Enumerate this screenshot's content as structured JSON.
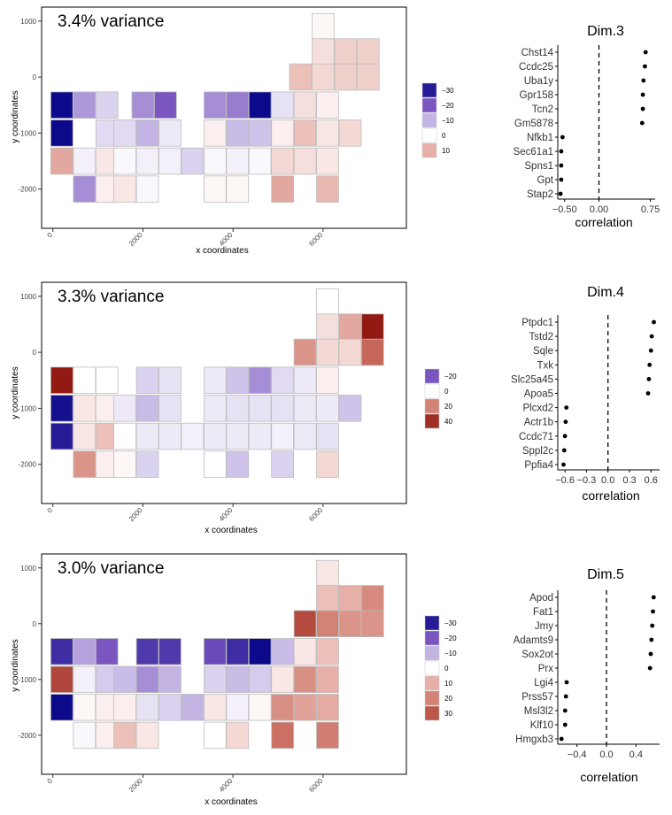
{
  "colors": {
    "neg_strong": "#0c0a8a",
    "neg_mid": "#7b56c0",
    "neg_light": "#c3b4e4",
    "zero": "#ffffff",
    "pos_light": "#e6b0a8",
    "pos_mid": "#c96b5d",
    "pos_strong": "#931a12",
    "cell_border": "#bdbdbd"
  },
  "chart_data": [
    {
      "type": "heatmap",
      "title": "3.4% variance",
      "xlabel": "x coordinates",
      "ylabel": "y coordinates",
      "xlim": [
        -250,
        7850
      ],
      "ylim": [
        -2700,
        1250
      ],
      "x_ticks": [
        0,
        2000,
        4000,
        6000
      ],
      "y_ticks": [
        1000,
        0,
        -1000,
        -2000
      ],
      "legend": {
        "position": "right",
        "values": [
          -30,
          -20,
          -10,
          0,
          10
        ],
        "labels": [
          "−30",
          "−20",
          "−10",
          "0",
          "10"
        ]
      },
      "cells": [
        {
          "x": 6000,
          "y": 900,
          "value": 1
        },
        {
          "x": 6000,
          "y": 450,
          "value": 4
        },
        {
          "x": 6500,
          "y": 450,
          "value": 6
        },
        {
          "x": 7000,
          "y": 450,
          "value": 6
        },
        {
          "x": 5500,
          "y": 0,
          "value": 8
        },
        {
          "x": 6000,
          "y": 0,
          "value": 5
        },
        {
          "x": 6500,
          "y": 0,
          "value": 6
        },
        {
          "x": 7000,
          "y": 0,
          "value": 6
        },
        {
          "x": 200,
          "y": -500,
          "value": -33
        },
        {
          "x": 700,
          "y": -500,
          "value": -13
        },
        {
          "x": 1200,
          "y": -500,
          "value": -6
        },
        {
          "x": 2000,
          "y": -500,
          "value": -14
        },
        {
          "x": 2500,
          "y": -500,
          "value": -20
        },
        {
          "x": 3600,
          "y": -500,
          "value": -14
        },
        {
          "x": 4100,
          "y": -500,
          "value": -16
        },
        {
          "x": 4600,
          "y": -500,
          "value": -33
        },
        {
          "x": 5100,
          "y": -500,
          "value": -4
        },
        {
          "x": 5600,
          "y": -500,
          "value": 4
        },
        {
          "x": 6100,
          "y": -500,
          "value": 2
        },
        {
          "x": 200,
          "y": -1000,
          "value": -33
        },
        {
          "x": 1200,
          "y": -1000,
          "value": -5
        },
        {
          "x": 1600,
          "y": -1000,
          "value": -5
        },
        {
          "x": 2100,
          "y": -1000,
          "value": -10
        },
        {
          "x": 2600,
          "y": -1000,
          "value": -3
        },
        {
          "x": 3600,
          "y": -1000,
          "value": 2
        },
        {
          "x": 4100,
          "y": -1000,
          "value": -9
        },
        {
          "x": 4600,
          "y": -1000,
          "value": -8
        },
        {
          "x": 5100,
          "y": -1000,
          "value": 2
        },
        {
          "x": 5600,
          "y": -1000,
          "value": 8
        },
        {
          "x": 6100,
          "y": -1000,
          "value": 3
        },
        {
          "x": 6600,
          "y": -1000,
          "value": 5
        },
        {
          "x": 200,
          "y": -1500,
          "value": 12
        },
        {
          "x": 700,
          "y": -1500,
          "value": -2
        },
        {
          "x": 1200,
          "y": -1500,
          "value": 3
        },
        {
          "x": 1600,
          "y": -1500,
          "value": -1
        },
        {
          "x": 2100,
          "y": -1500,
          "value": -2
        },
        {
          "x": 2600,
          "y": -1500,
          "value": -2
        },
        {
          "x": 3100,
          "y": -1500,
          "value": -6
        },
        {
          "x": 3600,
          "y": -1500,
          "value": -1
        },
        {
          "x": 4100,
          "y": -1500,
          "value": -2
        },
        {
          "x": 4600,
          "y": -1500,
          "value": -1
        },
        {
          "x": 5100,
          "y": -1500,
          "value": 5
        },
        {
          "x": 5600,
          "y": -1500,
          "value": 4
        },
        {
          "x": 6100,
          "y": -1500,
          "value": 3
        },
        {
          "x": 700,
          "y": -2000,
          "value": -14
        },
        {
          "x": 1200,
          "y": -2000,
          "value": 2
        },
        {
          "x": 1600,
          "y": -2000,
          "value": 3
        },
        {
          "x": 2100,
          "y": -2000,
          "value": -1
        },
        {
          "x": 3600,
          "y": -2000,
          "value": 1
        },
        {
          "x": 4100,
          "y": -2000,
          "value": 1
        },
        {
          "x": 5100,
          "y": -2000,
          "value": 12
        },
        {
          "x": 6100,
          "y": -2000,
          "value": 9
        }
      ]
    },
    {
      "type": "scatter",
      "title": "Dim.3",
      "xlabel": "correlation",
      "ylabel": "",
      "xlim": [
        -0.6,
        0.82
      ],
      "x_ticks": [
        -0.5,
        0.0,
        0.75
      ],
      "x_tick_labels": [
        "−0.50",
        "0.00",
        "0.75"
      ],
      "categories": [
        "Chst14",
        "Ccdc25",
        "Uba1y",
        "Gpr158",
        "Tcn2",
        "Gm5878",
        "Nfkb1",
        "Sec61a1",
        "Spns1",
        "Gpt",
        "Stap2"
      ],
      "values": [
        0.68,
        0.67,
        0.65,
        0.64,
        0.64,
        0.63,
        -0.53,
        -0.55,
        -0.55,
        -0.55,
        -0.56
      ]
    },
    {
      "type": "heatmap",
      "title": "3.3% variance",
      "xlabel": "x coordinates",
      "ylabel": "y coordinates",
      "xlim": [
        -250,
        7850
      ],
      "ylim": [
        -2700,
        1250
      ],
      "x_ticks": [
        0,
        2000,
        4000,
        6000
      ],
      "y_ticks": [
        1000,
        0,
        -1000,
        -2000
      ],
      "legend": {
        "position": "right",
        "values": [
          -20,
          0,
          20,
          40
        ],
        "labels": [
          "−20",
          "0",
          "20",
          "40"
        ]
      },
      "cells": [
        {
          "x": 6100,
          "y": 900,
          "value": 0
        },
        {
          "x": 6100,
          "y": 450,
          "value": 4
        },
        {
          "x": 6600,
          "y": 450,
          "value": 12
        },
        {
          "x": 7100,
          "y": 450,
          "value": 50
        },
        {
          "x": 5600,
          "y": 0,
          "value": 16
        },
        {
          "x": 6100,
          "y": 0,
          "value": 5
        },
        {
          "x": 6600,
          "y": 0,
          "value": 5
        },
        {
          "x": 7100,
          "y": 0,
          "value": 26
        },
        {
          "x": 200,
          "y": -500,
          "value": 55
        },
        {
          "x": 700,
          "y": -500,
          "value": 0
        },
        {
          "x": 1200,
          "y": -500,
          "value": 0
        },
        {
          "x": 2100,
          "y": -500,
          "value": -6
        },
        {
          "x": 2600,
          "y": -500,
          "value": -4
        },
        {
          "x": 3600,
          "y": -500,
          "value": -3
        },
        {
          "x": 4100,
          "y": -500,
          "value": -8
        },
        {
          "x": 4600,
          "y": -500,
          "value": -14
        },
        {
          "x": 5100,
          "y": -500,
          "value": -5
        },
        {
          "x": 5600,
          "y": -500,
          "value": -3
        },
        {
          "x": 6100,
          "y": -500,
          "value": 2
        },
        {
          "x": 200,
          "y": -1000,
          "value": -32
        },
        {
          "x": 700,
          "y": -1000,
          "value": 3
        },
        {
          "x": 1200,
          "y": -1000,
          "value": 2
        },
        {
          "x": 1600,
          "y": -1000,
          "value": -3
        },
        {
          "x": 2100,
          "y": -1000,
          "value": -9
        },
        {
          "x": 2600,
          "y": -1000,
          "value": -4
        },
        {
          "x": 3600,
          "y": -1000,
          "value": -3
        },
        {
          "x": 4100,
          "y": -1000,
          "value": -4
        },
        {
          "x": 4600,
          "y": -1000,
          "value": -4
        },
        {
          "x": 5100,
          "y": -1000,
          "value": -4
        },
        {
          "x": 5600,
          "y": -1000,
          "value": -3
        },
        {
          "x": 6100,
          "y": -1000,
          "value": -3
        },
        {
          "x": 6600,
          "y": -1000,
          "value": -8
        },
        {
          "x": 200,
          "y": -1500,
          "value": -30
        },
        {
          "x": 700,
          "y": -1500,
          "value": 3
        },
        {
          "x": 1200,
          "y": -1500,
          "value": 8
        },
        {
          "x": 1600,
          "y": -1500,
          "value": 0
        },
        {
          "x": 2100,
          "y": -1500,
          "value": -3
        },
        {
          "x": 2600,
          "y": -1500,
          "value": -3
        },
        {
          "x": 3100,
          "y": -1500,
          "value": -2
        },
        {
          "x": 3600,
          "y": -1500,
          "value": -3
        },
        {
          "x": 4100,
          "y": -1500,
          "value": -3
        },
        {
          "x": 4600,
          "y": -1500,
          "value": -3
        },
        {
          "x": 5100,
          "y": -1500,
          "value": -2
        },
        {
          "x": 5600,
          "y": -1500,
          "value": -3
        },
        {
          "x": 6100,
          "y": -1500,
          "value": -4
        },
        {
          "x": 700,
          "y": -2000,
          "value": 16
        },
        {
          "x": 1200,
          "y": -2000,
          "value": 2
        },
        {
          "x": 1600,
          "y": -2000,
          "value": 1
        },
        {
          "x": 2100,
          "y": -2000,
          "value": -6
        },
        {
          "x": 3600,
          "y": -2000,
          "value": 0
        },
        {
          "x": 4100,
          "y": -2000,
          "value": -8
        },
        {
          "x": 5100,
          "y": -2000,
          "value": -6
        },
        {
          "x": 6100,
          "y": -2000,
          "value": 5
        }
      ]
    },
    {
      "type": "scatter",
      "title": "Dim.4",
      "xlabel": "correlation",
      "ylabel": "",
      "xlim": [
        -0.7,
        0.72
      ],
      "x_ticks": [
        -0.6,
        -0.3,
        0.0,
        0.3,
        0.6
      ],
      "x_tick_labels": [
        "−0.6",
        "−0.3",
        "0.0",
        "0.3",
        "0.6"
      ],
      "categories": [
        "Ptpdc1",
        "Tstd2",
        "Sqle",
        "Txk",
        "Slc25a45",
        "Apoa5",
        "Plcxd2",
        "Actr1b",
        "Ccdc71",
        "Sppl2c",
        "Ppfia4"
      ],
      "values": [
        0.64,
        0.61,
        0.6,
        0.58,
        0.57,
        0.56,
        -0.58,
        -0.59,
        -0.6,
        -0.61,
        -0.62
      ]
    },
    {
      "type": "heatmap",
      "title": "3.0% variance",
      "xlabel": "x coordinates",
      "ylabel": "y coordinates",
      "xlim": [
        -250,
        7850
      ],
      "ylim": [
        -2700,
        1250
      ],
      "x_ticks": [
        0,
        2000,
        4000,
        6000
      ],
      "y_ticks": [
        1000,
        0,
        -1000,
        -2000
      ],
      "legend": {
        "position": "right",
        "values": [
          -30,
          -20,
          -10,
          0,
          10,
          20,
          30
        ],
        "labels": [
          "−30",
          "−20",
          "−10",
          "0",
          "10",
          "20",
          "30"
        ]
      },
      "cells": [
        {
          "x": 6100,
          "y": 900,
          "value": 3
        },
        {
          "x": 6100,
          "y": 450,
          "value": 8
        },
        {
          "x": 6600,
          "y": 450,
          "value": 10
        },
        {
          "x": 7100,
          "y": 450,
          "value": 18
        },
        {
          "x": 5600,
          "y": 0,
          "value": 33
        },
        {
          "x": 6100,
          "y": 0,
          "value": 20
        },
        {
          "x": 6600,
          "y": 0,
          "value": 16
        },
        {
          "x": 7100,
          "y": 0,
          "value": 16
        },
        {
          "x": 200,
          "y": -500,
          "value": -27
        },
        {
          "x": 700,
          "y": -500,
          "value": -12
        },
        {
          "x": 1200,
          "y": -500,
          "value": -20
        },
        {
          "x": 2100,
          "y": -500,
          "value": -25
        },
        {
          "x": 2600,
          "y": -500,
          "value": -25
        },
        {
          "x": 3600,
          "y": -500,
          "value": -22
        },
        {
          "x": 4100,
          "y": -500,
          "value": -27
        },
        {
          "x": 4600,
          "y": -500,
          "value": -33
        },
        {
          "x": 5100,
          "y": -500,
          "value": -9
        },
        {
          "x": 5600,
          "y": -500,
          "value": 3
        },
        {
          "x": 6100,
          "y": -500,
          "value": 8
        },
        {
          "x": 200,
          "y": -1000,
          "value": 34
        },
        {
          "x": 700,
          "y": -1000,
          "value": -2
        },
        {
          "x": 1200,
          "y": -1000,
          "value": -7
        },
        {
          "x": 1600,
          "y": -1000,
          "value": -9
        },
        {
          "x": 2100,
          "y": -1000,
          "value": -14
        },
        {
          "x": 2600,
          "y": -1000,
          "value": -10
        },
        {
          "x": 3600,
          "y": -1000,
          "value": -6
        },
        {
          "x": 4100,
          "y": -1000,
          "value": -9
        },
        {
          "x": 4600,
          "y": -1000,
          "value": -7
        },
        {
          "x": 5100,
          "y": -1000,
          "value": 3
        },
        {
          "x": 5600,
          "y": -1000,
          "value": 17
        },
        {
          "x": 6100,
          "y": -1000,
          "value": 10
        },
        {
          "x": 200,
          "y": -1500,
          "value": -33
        },
        {
          "x": 700,
          "y": -1500,
          "value": 1
        },
        {
          "x": 1200,
          "y": -1500,
          "value": 2
        },
        {
          "x": 1600,
          "y": -1500,
          "value": 2
        },
        {
          "x": 2100,
          "y": -1500,
          "value": -4
        },
        {
          "x": 2600,
          "y": -1500,
          "value": -6
        },
        {
          "x": 3100,
          "y": -1500,
          "value": -10
        },
        {
          "x": 3600,
          "y": -1500,
          "value": 3
        },
        {
          "x": 4100,
          "y": -1500,
          "value": -2
        },
        {
          "x": 4600,
          "y": -1500,
          "value": 1
        },
        {
          "x": 5100,
          "y": -1500,
          "value": 17
        },
        {
          "x": 5600,
          "y": -1500,
          "value": 13
        },
        {
          "x": 6100,
          "y": -1500,
          "value": 11
        },
        {
          "x": 700,
          "y": -2000,
          "value": -1
        },
        {
          "x": 1200,
          "y": -2000,
          "value": 2
        },
        {
          "x": 1600,
          "y": -2000,
          "value": 8
        },
        {
          "x": 2100,
          "y": -2000,
          "value": 3
        },
        {
          "x": 3600,
          "y": -2000,
          "value": 0
        },
        {
          "x": 4100,
          "y": -2000,
          "value": 5
        },
        {
          "x": 5100,
          "y": -2000,
          "value": 24
        },
        {
          "x": 6100,
          "y": -2000,
          "value": 21
        }
      ]
    },
    {
      "type": "scatter",
      "title": "Dim.5",
      "xlabel": "correlation",
      "ylabel": "",
      "xlim": [
        -0.66,
        0.72
      ],
      "x_ticks": [
        -0.4,
        0.0,
        0.4
      ],
      "x_tick_labels": [
        "−0.4",
        "0.0",
        "0.4"
      ],
      "categories": [
        "Apod",
        "Fat1",
        "Jmy",
        "Adamts9",
        "Sox2ot",
        "Prx",
        "Lgi4",
        "Prss57",
        "Msl3l2",
        "Klf10",
        "Hmgxb3"
      ],
      "values": [
        0.64,
        0.63,
        0.62,
        0.61,
        0.6,
        0.59,
        -0.54,
        -0.55,
        -0.56,
        -0.56,
        -0.61
      ]
    }
  ]
}
